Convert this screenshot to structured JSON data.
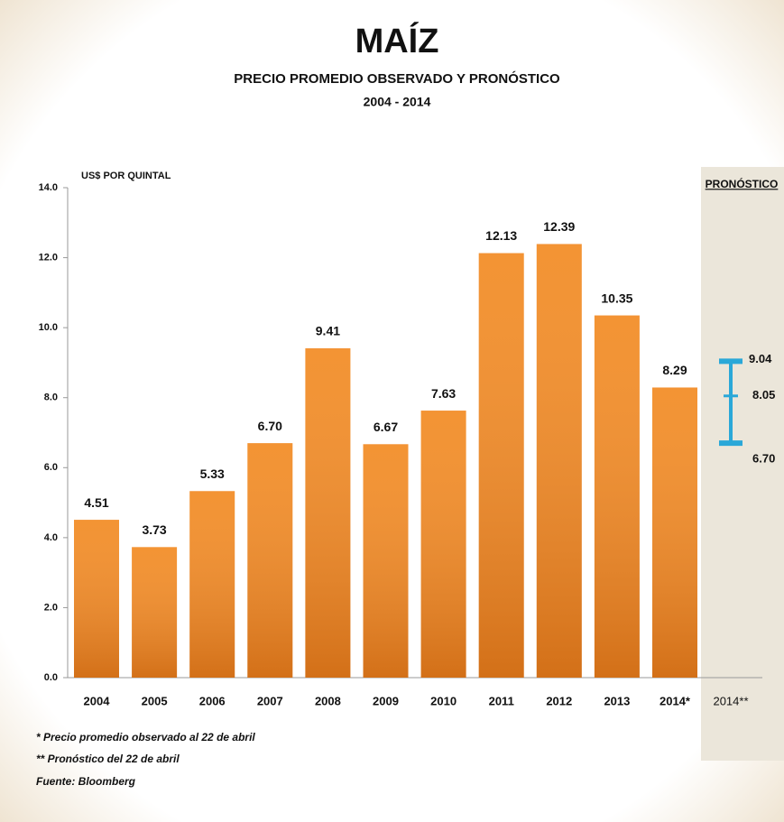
{
  "chart_data": {
    "type": "bar",
    "title": "MAÍZ",
    "subtitle": "PRECIO PROMEDIO OBSERVADO Y PRONÓSTICO",
    "period": "2004 - 2014",
    "y_label": "US$ POR QUINTAL",
    "categories": [
      "2004",
      "2005",
      "2006",
      "2007",
      "2008",
      "2009",
      "2010",
      "2011",
      "2012",
      "2013",
      "2014*"
    ],
    "values": [
      4.51,
      3.73,
      5.33,
      6.7,
      9.41,
      6.67,
      7.63,
      12.13,
      12.39,
      10.35,
      8.29
    ],
    "value_labels": [
      "4.51",
      "3.73",
      "5.33",
      "6.70",
      "9.41",
      "6.67",
      "7.63",
      "12.13",
      "12.39",
      "10.35",
      "8.29"
    ],
    "color": "#f28a22",
    "ylim": [
      0,
      14
    ],
    "yticks": [
      {
        "value": 0,
        "label": "0.0"
      },
      {
        "value": 2,
        "label": "2.0"
      },
      {
        "value": 4,
        "label": "4.0"
      },
      {
        "value": 6,
        "label": "6.0"
      },
      {
        "value": 8,
        "label": "8.0"
      },
      {
        "value": 10,
        "label": "10.0"
      },
      {
        "value": 12,
        "label": "12.0"
      },
      {
        "value": 14,
        "label": "14.0"
      }
    ],
    "forecast": {
      "header": "PRONÓSTICO",
      "category": "2014**",
      "low": 6.7,
      "mid": 8.05,
      "high": 9.04,
      "low_label": "6.70",
      "mid_label": "8.05",
      "high_label": "9.04",
      "color": "#2aa8d8"
    },
    "notes": [
      "*  Precio promedio observado al 22 de abril",
      "** Pronóstico del 22 de abril",
      "Fuente:  Bloomberg"
    ]
  }
}
